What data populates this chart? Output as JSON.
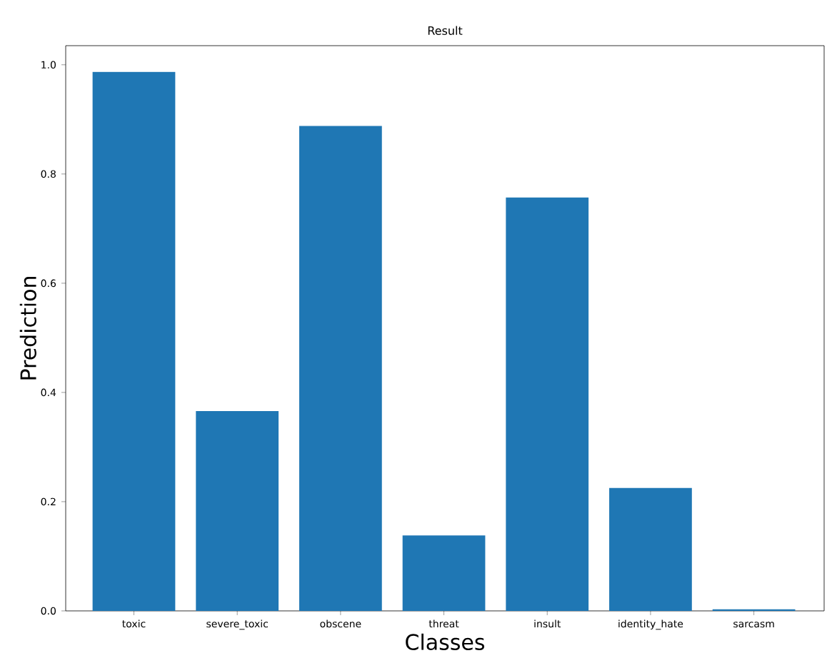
{
  "chart_data": {
    "type": "bar",
    "title": "Result",
    "xlabel": "Classes",
    "ylabel": "Prediction",
    "categories": [
      "toxic",
      "severe_toxic",
      "obscene",
      "threat",
      "insult",
      "identity_hate",
      "sarcasm"
    ],
    "values": [
      0.987,
      0.366,
      0.888,
      0.138,
      0.757,
      0.225,
      0.003
    ],
    "color": "#1f77b4",
    "ylim": [
      0,
      1.035
    ],
    "yticks": [
      {
        "value": 0,
        "label": "0.0"
      },
      0.2,
      0.4,
      0.6,
      0.8,
      {
        "value": 1,
        "label": "1.0"
      }
    ],
    "grid": false
  }
}
